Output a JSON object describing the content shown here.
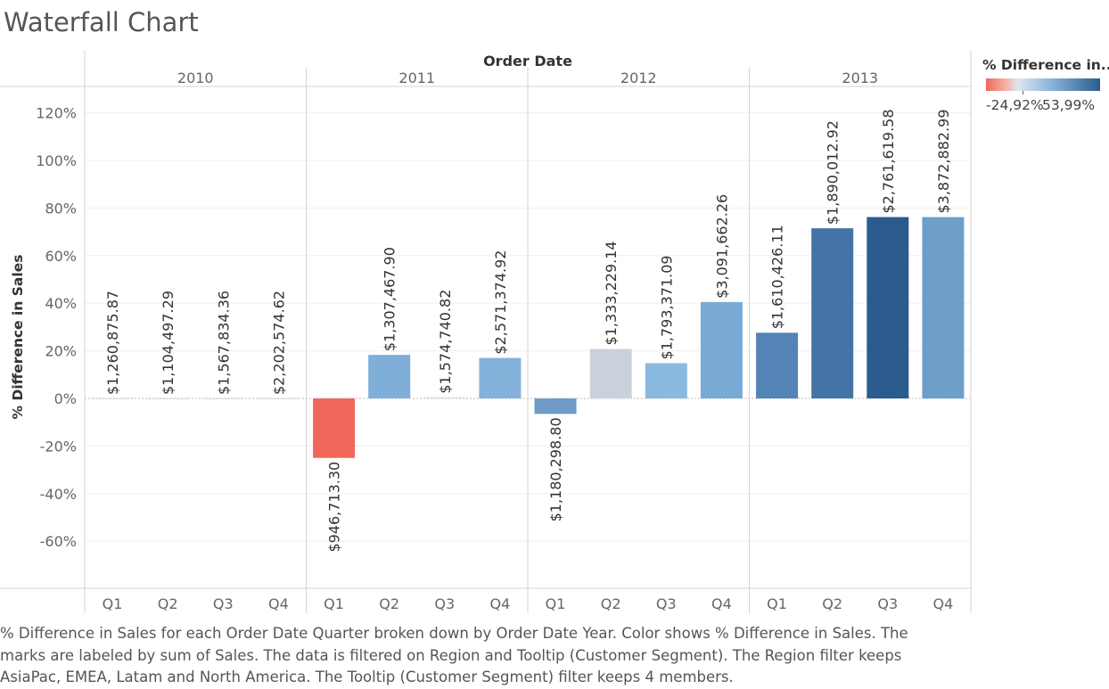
{
  "title": "Waterfall Chart",
  "caption": "% Difference in Sales for each Order Date Quarter broken down by Order Date Year.  Color shows % Difference in Sales.  The marks are labeled by sum of Sales. The data is filtered on Region and Tooltip (Customer Segment). The Region filter keeps AsiaPac, EMEA, Latam and North America. The Tooltip (Customer Segment) filter keeps 4 members.",
  "legend": {
    "title": "% Difference in..",
    "min_label": "-24,92%",
    "max_label": "53,99%",
    "colors": {
      "negative": "#f0685a",
      "neutral": "#dfe6ee",
      "positive": "#2c5b8e"
    }
  },
  "chart_data": {
    "type": "bar",
    "column_header": "Order Date",
    "ylabel": "% Difference in Sales",
    "ylim": [
      -80,
      130
    ],
    "yticks": [
      {
        "value": 120,
        "label": "120%"
      },
      {
        "value": 100,
        "label": "100%"
      },
      {
        "value": 80,
        "label": "80%"
      },
      {
        "value": 60,
        "label": "60%"
      },
      {
        "value": 40,
        "label": "40%"
      },
      {
        "value": 20,
        "label": "20%"
      },
      {
        "value": 0,
        "label": "0%"
      },
      {
        "value": -20,
        "label": "-20%"
      },
      {
        "value": -40,
        "label": "-40%"
      },
      {
        "value": -60,
        "label": "-60%"
      }
    ],
    "grid": true,
    "years": [
      "2010",
      "2011",
      "2012",
      "2013"
    ],
    "quarters": [
      "Q1",
      "Q2",
      "Q3",
      "Q4"
    ],
    "bars": [
      {
        "year": "2010",
        "quarter": "Q1",
        "pct": 0,
        "label": "$1,260,875.87",
        "color": "#d8dee6"
      },
      {
        "year": "2010",
        "quarter": "Q2",
        "pct": 0,
        "label": "$1,104,497.29",
        "color": "#d8dee6"
      },
      {
        "year": "2010",
        "quarter": "Q3",
        "pct": 0,
        "label": "$1,567,834.36",
        "color": "#d8dee6"
      },
      {
        "year": "2010",
        "quarter": "Q4",
        "pct": 0,
        "label": "$2,202,574.62",
        "color": "#d8dee6"
      },
      {
        "year": "2011",
        "quarter": "Q1",
        "pct": -25,
        "label": "$946,713.30",
        "color": "#f0685a"
      },
      {
        "year": "2011",
        "quarter": "Q2",
        "pct": 18.3,
        "label": "$1,307,467.90",
        "color": "#7faed8"
      },
      {
        "year": "2011",
        "quarter": "Q3",
        "pct": 0.5,
        "label": "$1,574,740.82",
        "color": "#d8dee6"
      },
      {
        "year": "2011",
        "quarter": "Q4",
        "pct": 17,
        "label": "$2,571,374.92",
        "color": "#84b1da"
      },
      {
        "year": "2012",
        "quarter": "Q1",
        "pct": -6.5,
        "label": "$1,180,298.80",
        "color": "#6f9bc6"
      },
      {
        "year": "2012",
        "quarter": "Q2",
        "pct": 20.8,
        "label": "$1,333,229.14",
        "color": "#c9d2dc"
      },
      {
        "year": "2012",
        "quarter": "Q3",
        "pct": 14.8,
        "label": "$1,793,371.09",
        "color": "#8ab9e0"
      },
      {
        "year": "2012",
        "quarter": "Q4",
        "pct": 40.5,
        "label": "$3,091,662.26",
        "color": "#79aad5"
      },
      {
        "year": "2013",
        "quarter": "Q1",
        "pct": 27.6,
        "label": "$1,610,426.11",
        "color": "#5384b5"
      },
      {
        "year": "2013",
        "quarter": "Q2",
        "pct": 71.5,
        "label": "$1,890,012.92",
        "color": "#4473a6"
      },
      {
        "year": "2013",
        "quarter": "Q3",
        "pct": 76.2,
        "label": "$2,761,619.58",
        "color": "#2c5b8e"
      },
      {
        "year": "2013",
        "quarter": "Q4",
        "pct": 76.2,
        "label": "$3,872,882.99",
        "color": "#6e9fcb"
      }
    ]
  }
}
